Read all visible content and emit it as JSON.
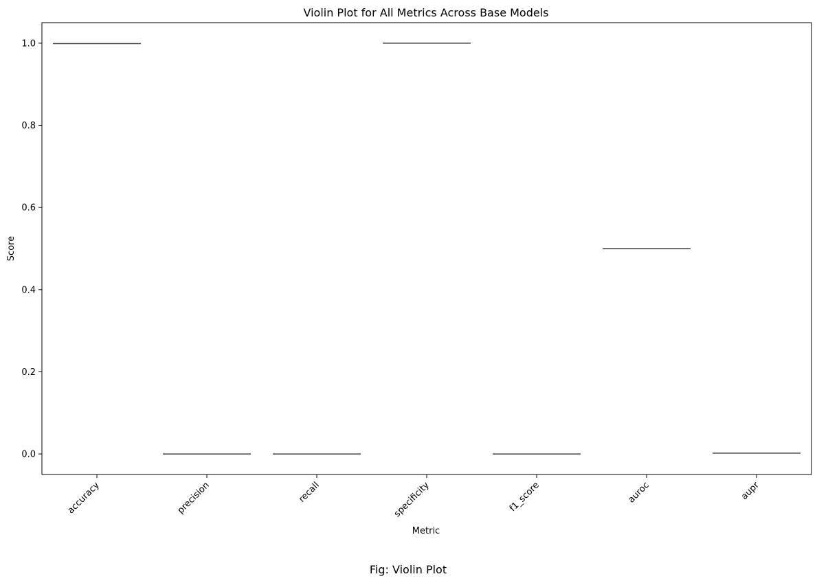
{
  "chart_data": {
    "type": "violin",
    "title": "Violin Plot for All Metrics Across Base Models",
    "xlabel": "Metric",
    "ylabel": "Score",
    "categories": [
      "accuracy",
      "precision",
      "recall",
      "specificity",
      "f1_score",
      "auroc",
      "aupr"
    ],
    "values": [
      0.999,
      0.0,
      0.0,
      1.0,
      0.0,
      0.5,
      0.002
    ],
    "ylim": [
      -0.05,
      1.05
    ],
    "yticks": [
      0.0,
      0.2,
      0.4,
      0.6,
      0.8,
      1.0
    ],
    "ytick_labels": [
      "0.0",
      "0.2",
      "0.4",
      "0.6",
      "0.8",
      "1.0"
    ],
    "xtick_rotation": "45 degrees",
    "grid": false,
    "line_color": "#444444"
  },
  "caption": "Fig: Violin Plot"
}
